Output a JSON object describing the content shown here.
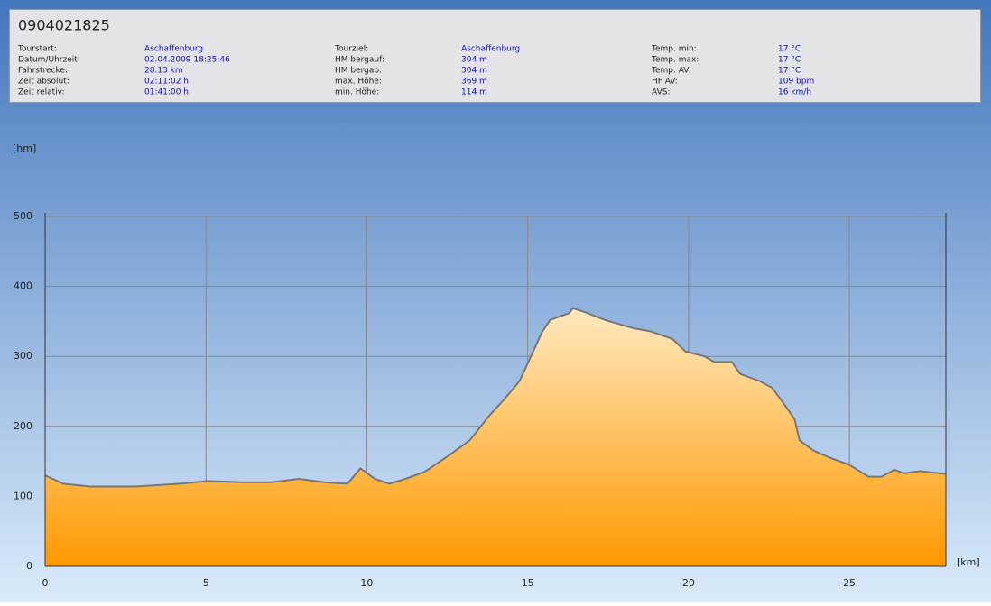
{
  "header": {
    "title": "0904021825",
    "columns": [
      [
        {
          "label": "Tourstart:",
          "value": "Aschaffenburg"
        },
        {
          "label": "Datum/Uhrzeit:",
          "value": "02.04.2009 18:25:46"
        },
        {
          "label": "Fahrstrecke:",
          "value": "28.13 km"
        },
        {
          "label": "Zeit absolut:",
          "value": "02:11:02 h"
        },
        {
          "label": "Zeit relativ:",
          "value": "01:41:00 h"
        }
      ],
      [
        {
          "label": "Tourziel:",
          "value": "Aschaffenburg"
        },
        {
          "label": "HM bergauf:",
          "value": "304 m"
        },
        {
          "label": "HM bergab:",
          "value": "304 m"
        },
        {
          "label": "max. Höhe:",
          "value": "369 m"
        },
        {
          "label": "min. Höhe:",
          "value": "114 m"
        }
      ],
      [
        {
          "label": "Temp. min:",
          "value": "17 °C"
        },
        {
          "label": "Temp. max:",
          "value": "17 °C"
        },
        {
          "label": "Temp. AV:",
          "value": "17 °C"
        },
        {
          "label": "HF AV:",
          "value": "109 bpm"
        },
        {
          "label": "AVS:",
          "value": "16 km/h"
        }
      ]
    ]
  },
  "chart_data": {
    "type": "area",
    "y_label": "[hm]",
    "x_label": "[km]",
    "x": [
      0,
      0.56,
      1.4,
      2.8,
      4.2,
      5.05,
      6.2,
      7.0,
      7.9,
      8.7,
      9.4,
      9.8,
      10.25,
      10.7,
      11.2,
      11.8,
      12.6,
      13.2,
      13.8,
      14.3,
      14.75,
      15.0,
      15.45,
      15.7,
      16.3,
      16.4,
      16.85,
      17.4,
      18.3,
      18.8,
      19.5,
      19.9,
      20.5,
      20.8,
      21.35,
      21.6,
      22.2,
      22.6,
      23.0,
      23.3,
      23.45,
      23.9,
      24.4,
      25.0,
      25.6,
      26.0,
      26.4,
      26.7,
      27.2,
      28.0
    ],
    "values": [
      130,
      118,
      114,
      114,
      118,
      122,
      120,
      120,
      125,
      120,
      118,
      140,
      125,
      118,
      125,
      135,
      160,
      180,
      215,
      240,
      265,
      290,
      335,
      352,
      362,
      369,
      362,
      352,
      340,
      336,
      325,
      307,
      300,
      292,
      292,
      275,
      265,
      255,
      230,
      210,
      180,
      165,
      155,
      145,
      128,
      128,
      138,
      133,
      136,
      132
    ],
    "xlim": [
      0,
      28
    ],
    "ylim": [
      0,
      500
    ],
    "xticks": [
      0,
      5,
      10,
      15,
      20,
      25
    ],
    "yticks": [
      0,
      100,
      200,
      300,
      400,
      500
    ],
    "grid": true,
    "color": "#ff9900",
    "line_color": "#777777"
  }
}
